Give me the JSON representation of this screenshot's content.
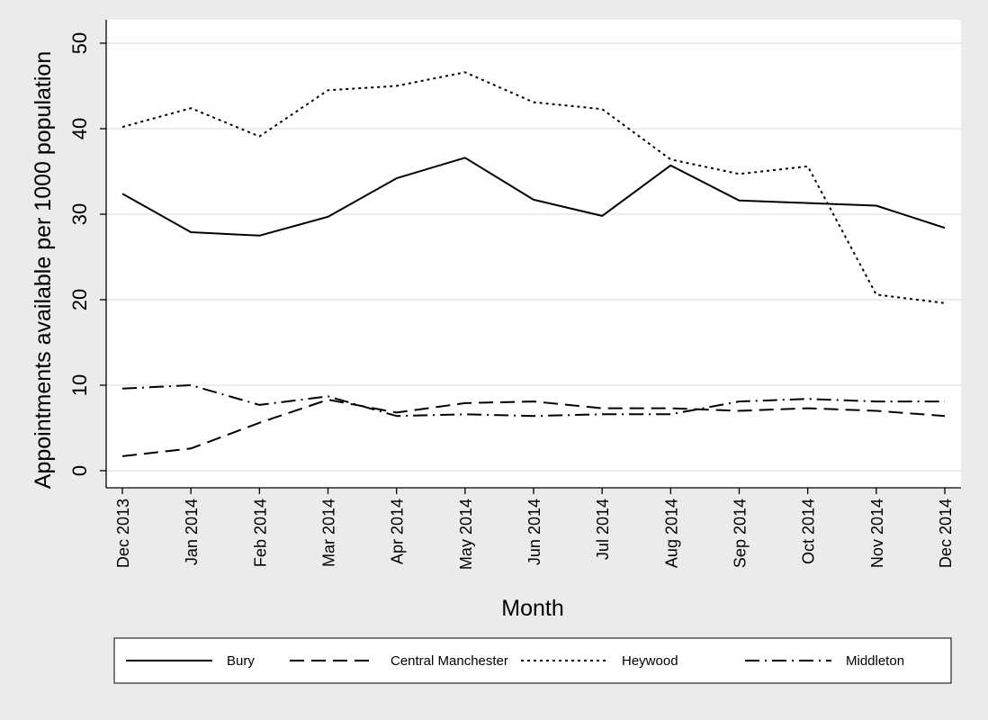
{
  "chart_data": {
    "type": "line",
    "ylabel": "Appointments available per 1000 population",
    "xlabel": "Month",
    "ylim": [
      0,
      50
    ],
    "yticks": [
      0,
      10,
      20,
      30,
      40,
      50
    ],
    "y_tick_labels": [
      "0",
      "10",
      "20",
      "30",
      "40",
      "50"
    ],
    "grid": true,
    "legend_position": "bottom",
    "categories": [
      "Dec 2013",
      "Jan 2014",
      "Feb 2014",
      "Mar 2014",
      "Apr 2014",
      "May 2014",
      "Jun 2014",
      "Jul 2014",
      "Aug 2014",
      "Sep 2014",
      "Oct 2014",
      "Nov 2014",
      "Dec 2014"
    ],
    "series": [
      {
        "name": "Bury",
        "style": "solid",
        "values": [
          32.4,
          27.9,
          27.5,
          29.7,
          34.2,
          36.6,
          31.7,
          29.8,
          35.7,
          31.6,
          31.3,
          31.0,
          28.4
        ]
      },
      {
        "name": "Central Manchester",
        "style": "dash",
        "values": [
          1.7,
          2.6,
          5.6,
          8.3,
          6.8,
          7.9,
          8.1,
          7.3,
          7.3,
          7.0,
          7.3,
          7.0,
          6.4
        ]
      },
      {
        "name": "Heywood",
        "style": "dot",
        "values": [
          40.2,
          42.4,
          39.1,
          44.5,
          45.0,
          46.6,
          43.1,
          42.3,
          36.4,
          34.7,
          35.6,
          20.6,
          19.6
        ]
      },
      {
        "name": "Middleton",
        "style": "dashdot",
        "values": [
          9.6,
          10.0,
          7.7,
          8.7,
          6.4,
          6.6,
          6.4,
          6.6,
          6.6,
          8.1,
          8.4,
          8.1,
          8.1
        ]
      }
    ]
  }
}
